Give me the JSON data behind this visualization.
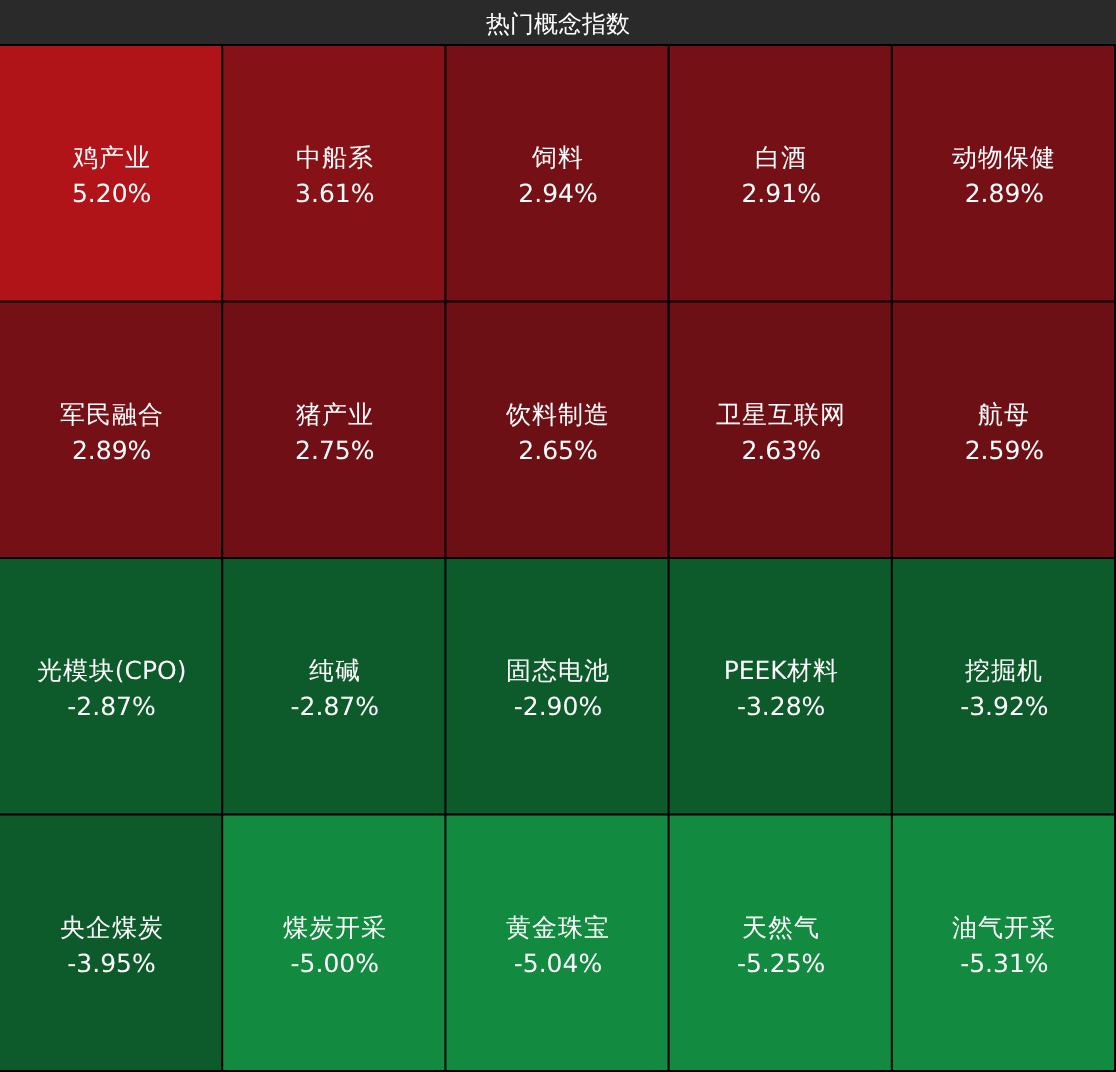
{
  "chart_data": {
    "type": "other",
    "title": "热门概念指数",
    "categories": [
      "鸡产业",
      "中船系",
      "饲料",
      "白酒",
      "动物保健",
      "军民融合",
      "猪产业",
      "饮料制造",
      "卫星互联网",
      "航母",
      "光模块(CPO)",
      "纯碱",
      "固态电池",
      "PEEK材料",
      "挖掘机",
      "央企煤炭",
      "煤炭开采",
      "黄金珠宝",
      "天然气",
      "油气开采"
    ],
    "values": [
      5.2,
      3.61,
      2.94,
      2.91,
      2.89,
      2.89,
      2.75,
      2.65,
      2.63,
      2.59,
      -2.87,
      -2.87,
      -2.9,
      -3.28,
      -3.92,
      -3.95,
      -5.0,
      -5.04,
      -5.25,
      -5.31
    ],
    "value_labels": [
      "5.20%",
      "3.61%",
      "2.94%",
      "2.91%",
      "2.89%",
      "2.89%",
      "2.75%",
      "2.65%",
      "2.63%",
      "2.59%",
      "-2.87%",
      "-2.87%",
      "-2.90%",
      "-3.28%",
      "-3.92%",
      "-3.95%",
      "-5.00%",
      "-5.04%",
      "-5.25%",
      "-5.31%"
    ]
  }
}
